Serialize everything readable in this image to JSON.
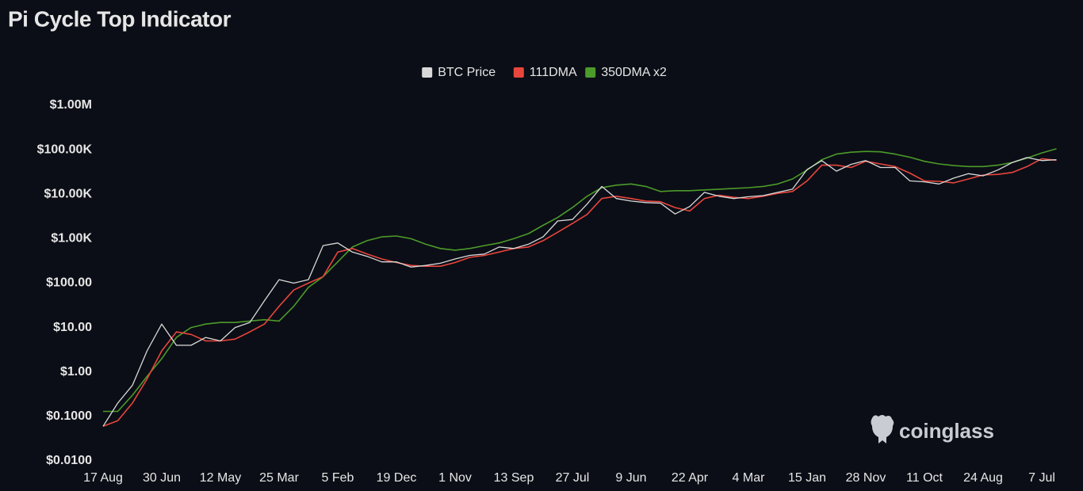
{
  "chart_data": {
    "type": "line",
    "title": "Pi Cycle Top Indicator",
    "watermark": "coinglass",
    "log_scale": true,
    "grid": false,
    "legend": "top",
    "categories": [
      "17 Aug",
      null,
      null,
      null,
      "30 Jun",
      null,
      null,
      null,
      "12 May",
      null,
      null,
      null,
      "25 Mar",
      null,
      null,
      null,
      "5 Feb",
      null,
      null,
      null,
      "19 Dec",
      null,
      null,
      null,
      "1 Nov",
      null,
      null,
      null,
      "13 Sep",
      null,
      null,
      null,
      "27 Jul",
      null,
      null,
      null,
      "9 Jun",
      null,
      null,
      null,
      "22 Apr",
      null,
      null,
      null,
      "4 Mar",
      null,
      null,
      null,
      "15 Jan",
      null,
      null,
      null,
      "28 Nov",
      null,
      null,
      null,
      "11 Oct",
      null,
      null,
      null,
      "24 Aug",
      null,
      null,
      null,
      "7 Jul",
      null
    ],
    "series": [
      {
        "name": "BTC Price",
        "color": "#d9d9d9",
        "values": [
          0.06,
          0.2,
          0.5,
          3,
          12,
          4,
          4,
          6,
          5,
          10,
          13,
          40,
          120,
          100,
          120,
          700,
          800,
          500,
          400,
          300,
          300,
          230,
          250,
          280,
          350,
          420,
          450,
          650,
          600,
          750,
          1100,
          2500,
          2700,
          6000,
          15000,
          8000,
          7000,
          6500,
          6300,
          3600,
          5300,
          11000,
          9000,
          8000,
          8800,
          9300,
          11000,
          13000,
          36000,
          57000,
          33000,
          47000,
          57000,
          40000,
          40000,
          20000,
          19000,
          17000,
          23000,
          29000,
          26000,
          35000,
          52000,
          67000,
          57000,
          60000
        ]
      },
      {
        "name": "111DMA",
        "color": "#e8453c",
        "values": [
          0.06,
          0.08,
          0.2,
          0.7,
          3,
          8,
          7,
          5,
          5,
          5.5,
          8,
          12,
          30,
          70,
          100,
          140,
          500,
          600,
          450,
          350,
          290,
          250,
          240,
          240,
          290,
          380,
          420,
          500,
          600,
          650,
          900,
          1400,
          2200,
          3500,
          8000,
          9000,
          8000,
          7000,
          6800,
          5000,
          4200,
          8000,
          9500,
          8500,
          8000,
          9000,
          10500,
          11500,
          20000,
          45000,
          45000,
          40000,
          55000,
          48000,
          42000,
          30000,
          20000,
          19500,
          18000,
          22000,
          27000,
          28000,
          31000,
          42000,
          63000,
          58000
        ]
      },
      {
        "name": "350DMA x2",
        "color": "#4c9a2a",
        "values": [
          0.13,
          0.13,
          0.3,
          0.8,
          2,
          6,
          10,
          12,
          13,
          13,
          14,
          15,
          14,
          30,
          80,
          140,
          300,
          650,
          900,
          1100,
          1150,
          1000,
          750,
          600,
          550,
          600,
          700,
          800,
          1000,
          1300,
          2000,
          3000,
          5000,
          9000,
          14000,
          16000,
          17000,
          15000,
          11500,
          12000,
          12000,
          12500,
          13000,
          13500,
          14000,
          15000,
          17000,
          22000,
          35000,
          60000,
          80000,
          88000,
          92000,
          90000,
          80000,
          68000,
          55000,
          48000,
          44000,
          42000,
          42000,
          45000,
          52000,
          65000,
          85000,
          105000
        ]
      }
    ],
    "ylim": [
      0.01,
      1000000
    ],
    "yticks": [
      {
        "value": 0.01,
        "label": "$0.0100"
      },
      {
        "value": 0.1,
        "label": "$0.1000"
      },
      {
        "value": 1,
        "label": "$1.00"
      },
      {
        "value": 10,
        "label": "$10.00"
      },
      {
        "value": 100,
        "label": "$100.00"
      },
      {
        "value": 1000,
        "label": "$1.00K"
      },
      {
        "value": 10000,
        "label": "$10.00K"
      },
      {
        "value": 100000,
        "label": "$100.00K"
      },
      {
        "value": 1000000,
        "label": "$1.00M"
      }
    ]
  }
}
